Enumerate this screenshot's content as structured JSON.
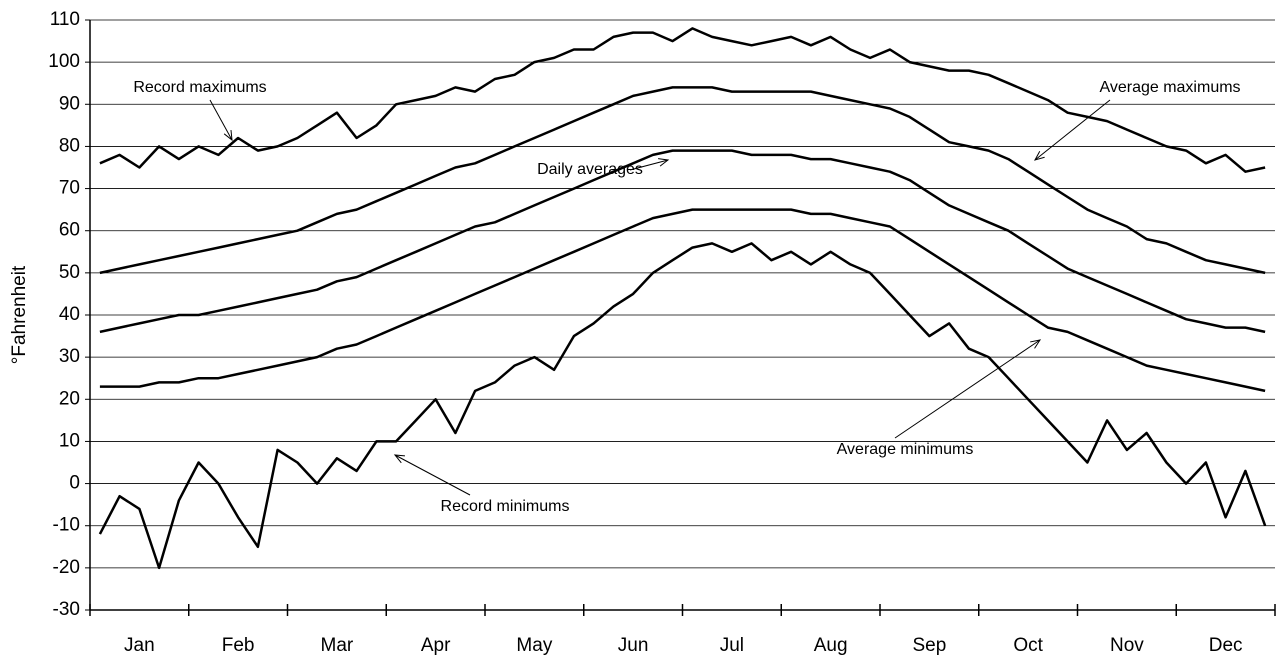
{
  "chart_data": {
    "type": "line",
    "y_label": "°Fahrenheit",
    "categories": [
      null,
      null,
      "Jan",
      null,
      null,
      null,
      null,
      "Feb",
      null,
      null,
      null,
      null,
      "Mar",
      null,
      null,
      null,
      null,
      "Apr",
      null,
      null,
      null,
      null,
      "May",
      null,
      null,
      null,
      null,
      "Jun",
      null,
      null,
      null,
      null,
      "Jul",
      null,
      null,
      null,
      null,
      "Aug",
      null,
      null,
      null,
      null,
      "Sep",
      null,
      null,
      null,
      null,
      "Oct",
      null,
      null,
      null,
      null,
      "Nov",
      null,
      null,
      null,
      null,
      "Dec",
      null,
      null
    ],
    "series": [
      {
        "name": "Record maximums",
        "color": "#000000",
        "values": [
          76,
          78,
          75,
          80,
          77,
          80,
          78,
          82,
          79,
          80,
          82,
          85,
          88,
          82,
          85,
          90,
          91,
          92,
          94,
          93,
          96,
          97,
          100,
          101,
          103,
          103,
          106,
          107,
          107,
          105,
          108,
          106,
          105,
          104,
          105,
          106,
          104,
          106,
          103,
          101,
          103,
          100,
          99,
          98,
          98,
          97,
          95,
          93,
          91,
          88,
          87,
          86,
          84,
          82,
          80,
          79,
          76,
          78,
          74,
          75
        ]
      },
      {
        "name": "Average maximums",
        "color": "#000000",
        "values": [
          50,
          51,
          52,
          53,
          54,
          55,
          56,
          57,
          58,
          59,
          60,
          62,
          64,
          65,
          67,
          69,
          71,
          73,
          75,
          76,
          78,
          80,
          82,
          84,
          86,
          88,
          90,
          92,
          93,
          94,
          94,
          94,
          93,
          93,
          93,
          93,
          93,
          92,
          91,
          90,
          89,
          87,
          84,
          81,
          80,
          79,
          77,
          74,
          71,
          68,
          65,
          63,
          61,
          58,
          57,
          55,
          53,
          52,
          51,
          50
        ]
      },
      {
        "name": "Daily averages",
        "color": "#000000",
        "values": [
          36,
          37,
          38,
          39,
          40,
          40,
          41,
          42,
          43,
          44,
          45,
          46,
          48,
          49,
          51,
          53,
          55,
          57,
          59,
          61,
          62,
          64,
          66,
          68,
          70,
          72,
          74,
          76,
          78,
          79,
          79,
          79,
          79,
          78,
          78,
          78,
          77,
          77,
          76,
          75,
          74,
          72,
          69,
          66,
          64,
          62,
          60,
          57,
          54,
          51,
          49,
          47,
          45,
          43,
          41,
          39,
          38,
          37,
          37,
          36
        ]
      },
      {
        "name": "Average minimums",
        "color": "#000000",
        "values": [
          23,
          23,
          23,
          24,
          24,
          25,
          25,
          26,
          27,
          28,
          29,
          30,
          32,
          33,
          35,
          37,
          39,
          41,
          43,
          45,
          47,
          49,
          51,
          53,
          55,
          57,
          59,
          61,
          63,
          64,
          65,
          65,
          65,
          65,
          65,
          65,
          64,
          64,
          63,
          62,
          61,
          58,
          55,
          52,
          49,
          46,
          43,
          40,
          37,
          36,
          34,
          32,
          30,
          28,
          27,
          26,
          25,
          24,
          23,
          22
        ]
      },
      {
        "name": "Record minimums",
        "color": "#000000",
        "values": [
          -12,
          -3,
          -6,
          -20,
          -4,
          5,
          0,
          -8,
          -15,
          8,
          5,
          0,
          6,
          3,
          10,
          10,
          15,
          20,
          12,
          22,
          24,
          28,
          30,
          27,
          35,
          38,
          42,
          45,
          50,
          53,
          56,
          57,
          55,
          57,
          53,
          55,
          52,
          55,
          52,
          50,
          45,
          40,
          35,
          38,
          32,
          30,
          25,
          20,
          15,
          10,
          5,
          15,
          8,
          12,
          5,
          0,
          5,
          -8,
          3,
          -10
        ]
      }
    ],
    "ylim": [
      -30,
      110
    ],
    "yticks": [
      -30,
      -20,
      -10,
      0,
      10,
      20,
      30,
      40,
      50,
      60,
      70,
      80,
      90,
      100,
      110
    ],
    "grid": true
  }
}
